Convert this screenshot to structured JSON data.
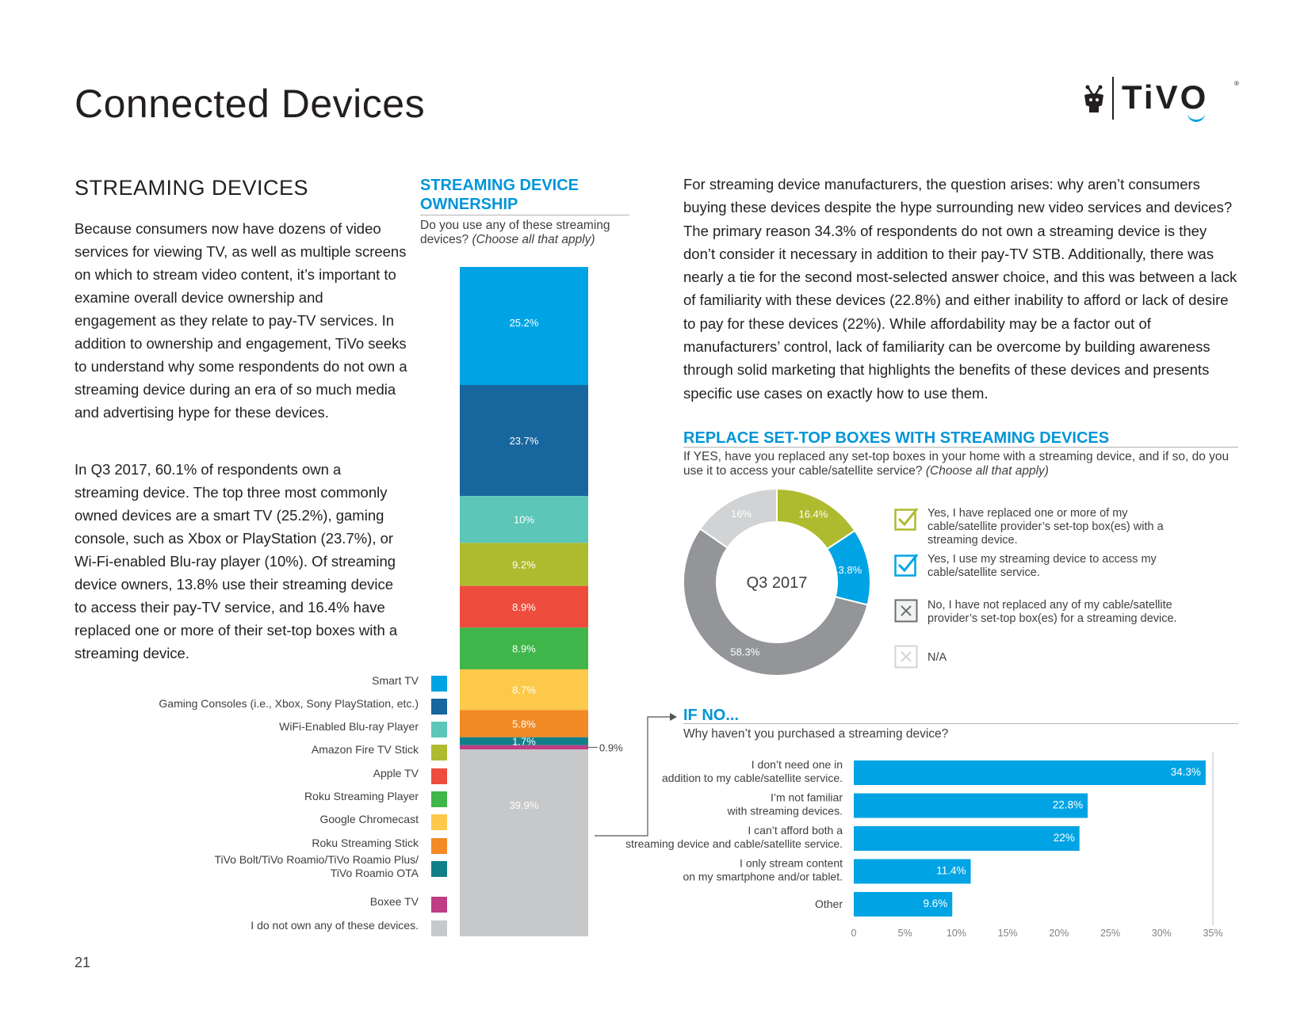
{
  "header": {
    "title": "Connected Devices",
    "logo_text": "TiVO",
    "logo_reg": "®"
  },
  "left": {
    "heading": "STREAMING DEVICES",
    "para1": "Because consumers now have dozens of video services for viewing TV, as well as multiple screens on which to stream video content, it’s important to examine overall device ownership and engagement as they relate to pay-TV services. In addition to ownership and engagement, TiVo seeks to understand why some respondents do not own a streaming device during an era of so much media and advertising hype for these devices.",
    "para2": "In Q3 2017, 60.1% of respondents own a streaming device. The top three most commonly owned devices are a smart TV (25.2%), gaming console, such as Xbox or PlayStation (23.7%), or Wi-Fi-enabled Blu-ray player (10%). Of streaming device owners, 13.8% use their streaming device to access their pay-TV service, and 16.4% have replaced one or more of their set-top boxes with a streaming device."
  },
  "ownership": {
    "heading": "STREAMING DEVICE OWNERSHIP",
    "question": "Do you use any of these streaming devices?",
    "question_note": "(Choose all that apply)"
  },
  "right": {
    "para": "For streaming device manufacturers, the question arises: why aren’t consumers buying these devices despite the hype surrounding new video services and devices? The primary reason 34.3% of respondents do not own a streaming device is they don’t consider it necessary in addition to their pay-TV STB. Additionally, there was nearly a tie for the second most-selected answer choice, and this was between a lack of familiarity with these devices (22.8%) and either inability to afford or lack of desire to pay for these devices (22%). While affordability may be a factor out of manufacturers’ control, lack of familiarity can be overcome by building awareness through solid marketing that highlights the benefits of these devices and presents specific use cases on exactly how to use them."
  },
  "replace": {
    "heading": "REPLACE SET-TOP BOXES WITH STREAMING DEVICES",
    "question": "If YES, have you replaced any set-top boxes in your home with a streaming device, and if so, do you use it to access your cable/satellite service?",
    "question_note": "(Choose all that apply)"
  },
  "ifno": {
    "heading": "IF NO...",
    "question": "Why haven’t you purchased a streaming device?"
  },
  "page_number": "21",
  "chart_data": [
    {
      "type": "bar",
      "subtype": "stacked-100",
      "title": "STREAMING DEVICE OWNERSHIP",
      "unit": "%",
      "segments": [
        {
          "name": "Smart TV",
          "value": 25.2,
          "label": "25.2%",
          "color": "#00a4e4"
        },
        {
          "name": "Gaming Consoles (i.e., Xbox, Sony PlayStation, etc.)",
          "value": 23.7,
          "label": "23.7%",
          "color": "#17669e"
        },
        {
          "name": "WiFi-Enabled Blu-ray Player",
          "value": 10,
          "label": "10%",
          "color": "#5cc6b8"
        },
        {
          "name": "Amazon Fire TV Stick",
          "value": 9.2,
          "label": "9.2%",
          "color": "#afbb2e"
        },
        {
          "name": "Apple TV",
          "value": 8.9,
          "label": "8.9%",
          "color": "#ee4d3d"
        },
        {
          "name": "Roku Streaming Player",
          "value": 8.9,
          "label": "8.9%",
          "color": "#3fb54a"
        },
        {
          "name": "Google Chromecast",
          "value": 8.7,
          "label": "8.7%",
          "color": "#fdc94a"
        },
        {
          "name": "Roku Streaming Stick",
          "value": 5.8,
          "label": "5.8%",
          "color": "#f28a26"
        },
        {
          "name": "TiVo Bolt/TiVo Roamio/TiVo Roamio Plus/ TiVo Roamio OTA",
          "value": 1.7,
          "label": "1.7%",
          "color": "#127e87"
        },
        {
          "name": "Boxee TV",
          "value": 0.9,
          "label": "0.9%",
          "color": "#bf3d84"
        },
        {
          "name": "I do not own any of these devices.",
          "value": 39.9,
          "label": "39.9%",
          "color": "#c7c8ca"
        }
      ]
    },
    {
      "type": "pie",
      "subtype": "donut",
      "title": "REPLACE SET-TOP BOXES WITH STREAMING DEVICES",
      "center_label": "Q3 2017",
      "slices": [
        {
          "name": "Yes, I have replaced one or more of my cable/satellite provider’s set-top box(es) with a streaming device.",
          "value": 16.4,
          "label": "16.4%",
          "color": "#afbb2e",
          "icon": "check"
        },
        {
          "name": "Yes, I use my streaming device to access my cable/satellite service.",
          "value": 13.8,
          "label": "13.8%",
          "color": "#00a4e4",
          "icon": "check"
        },
        {
          "name": "No, I have not replaced any of my cable/satellite provider’s set-top box(es) for a streaming device.",
          "value": 58.3,
          "label": "58.3%",
          "color": "#939598",
          "icon": "x"
        },
        {
          "name": "N/A",
          "value": 16,
          "label": "16%",
          "color": "#d1d3d4",
          "icon": "x-light"
        }
      ]
    },
    {
      "type": "bar",
      "subtype": "horizontal",
      "title": "IF NO...",
      "xlim": [
        0,
        35
      ],
      "xticks": [
        "0",
        "5%",
        "10%",
        "15%",
        "20%",
        "25%",
        "30%",
        "35%"
      ],
      "color": "#00a4e4",
      "bars": [
        {
          "label": "I don’t need one in addition to my cable/satellite service.",
          "value": 34.3,
          "value_label": "34.3%"
        },
        {
          "label": "I’m not familiar with streaming devices.",
          "value": 22.8,
          "value_label": "22.8%"
        },
        {
          "label": "I can’t afford both a streaming device and cable/satellite service.",
          "value": 22,
          "value_label": "22%"
        },
        {
          "label": "I only stream content on my smartphone and/or tablet.",
          "value": 11.4,
          "value_label": "11.4%"
        },
        {
          "label": "Other",
          "value": 9.6,
          "value_label": "9.6%"
        }
      ]
    }
  ]
}
